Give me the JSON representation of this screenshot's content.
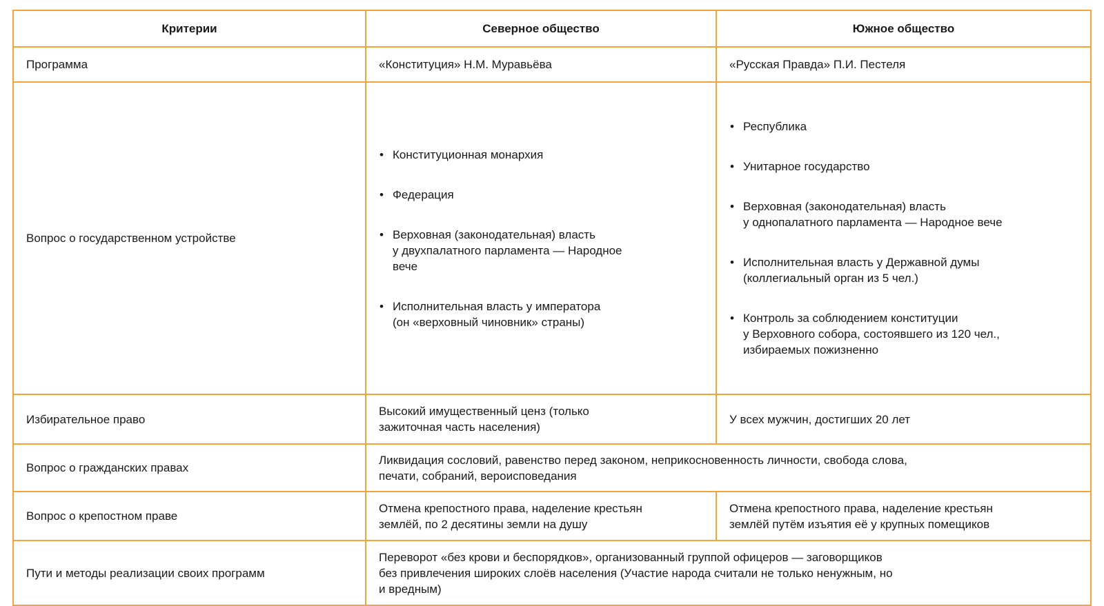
{
  "headers": [
    "Критерии",
    "Северное общество",
    "Южное общество"
  ],
  "rows": {
    "program": {
      "label": "Программа",
      "north": "«Конституция» Н.М. Муравьёва",
      "south": "«Русская Правда» П.И. Пестеля"
    },
    "government": {
      "label": "Вопрос о государственном устройстве",
      "north": [
        "Конституционная монархия",
        "Федерация",
        "Верховная (законодательная) власть\nу двухпалатного парламента — Народное\nвече",
        "Исполнительная власть у императора\n(он «верховный чиновник» страны)"
      ],
      "south": [
        "Республика",
        "Унитарное государство",
        "Верховная (законодательная) власть\nу однопалатного парламента — Народное вече",
        "Исполнительная власть у Державной думы\n(коллегиальный орган из 5 чел.)",
        "Контроль за соблюдением конституции\nу Верховного собора, состоявшего из 120 чел.,\nизбираемых пожизненно"
      ]
    },
    "suffrage": {
      "label": "Избирательное право",
      "north": "Высокий имущественный ценз (только\nзажиточная часть населения)",
      "south": "У всех мужчин, достигших 20 лет"
    },
    "civil": {
      "label": "Вопрос о гражданских правах",
      "both": "Ликвидация сословий, равенство перед законом, неприкосновенность личности, свобода слова,\nпечати, собраний, вероисповедания"
    },
    "serfdom": {
      "label": "Вопрос о крепостном праве",
      "north": "Отмена крепостного права, наделение крестьян\nземлёй, по 2 десятины земли на душу",
      "south": "Отмена крепостного права, наделение крестьян\nземлёй путём изъятия её у крупных помещиков"
    },
    "methods": {
      "label": "Пути и методы реализации своих программ",
      "both": "Переворот «без крови и беспорядков», организованный группой офицеров — заговорщиков\nбез привлечения широких слоёв населения (Участие народа считали не только ненужным, но\nи вредным)"
    }
  },
  "colors": {
    "border": "#f7a33a",
    "text": "#1a1a1a"
  }
}
